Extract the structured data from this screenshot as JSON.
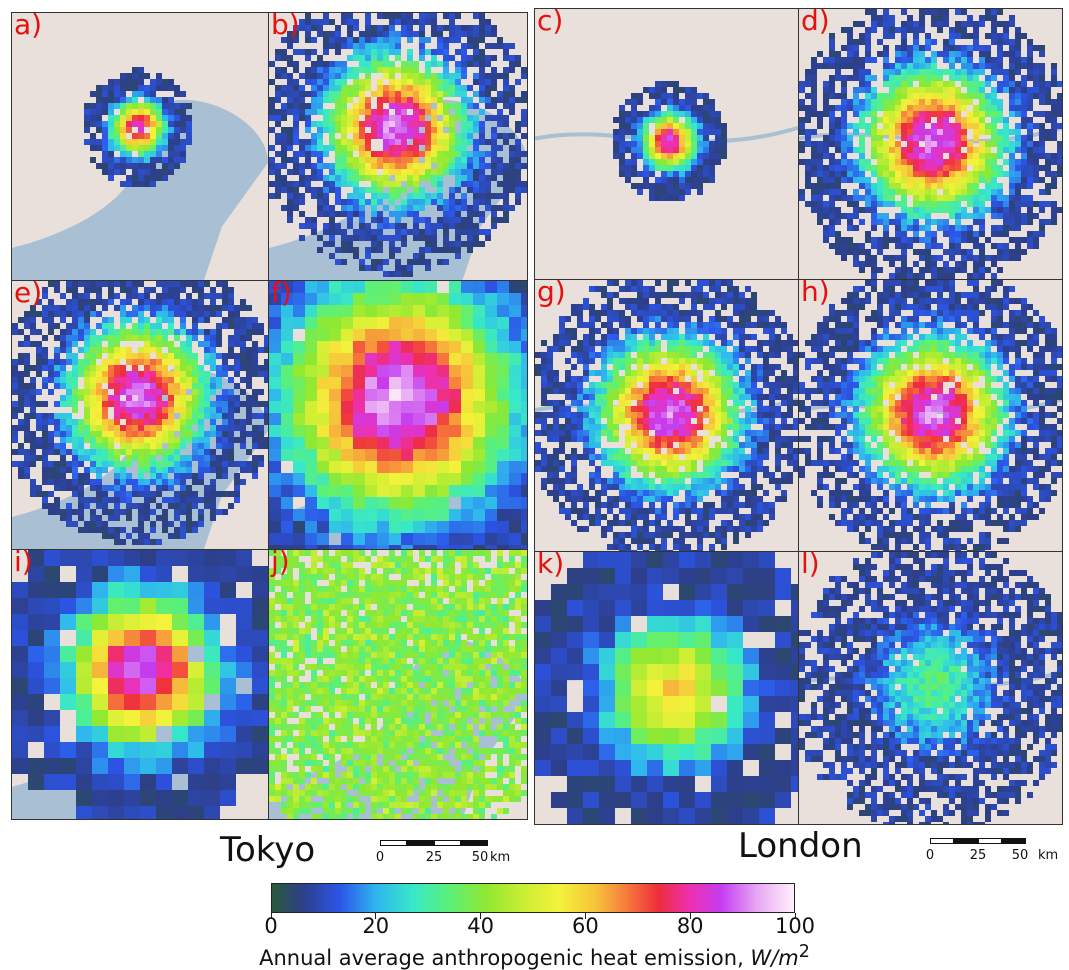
{
  "panels": [
    {
      "label": "a)",
      "city": "Tokyo",
      "pattern": "tokyo-small"
    },
    {
      "label": "b)",
      "city": "Tokyo",
      "pattern": "tokyo-spread"
    },
    {
      "label": "c)",
      "city": "London",
      "pattern": "london-small"
    },
    {
      "label": "d)",
      "city": "London",
      "pattern": "london-spread"
    },
    {
      "label": "e)",
      "city": "Tokyo",
      "pattern": "tokyo-spread"
    },
    {
      "label": "f)",
      "city": "Tokyo",
      "pattern": "tokyo-regions"
    },
    {
      "label": "g)",
      "city": "London",
      "pattern": "london-spread"
    },
    {
      "label": "h)",
      "city": "London",
      "pattern": "london-spread"
    },
    {
      "label": "i)",
      "city": "Tokyo",
      "pattern": "tokyo-coarse"
    },
    {
      "label": "j)",
      "city": "Tokyo",
      "pattern": "tokyo-flat"
    },
    {
      "label": "k)",
      "city": "London",
      "pattern": "london-coarse"
    },
    {
      "label": "l)",
      "city": "London",
      "pattern": "london-low"
    }
  ],
  "cities": {
    "tokyo": {
      "name": "Tokyo"
    },
    "london": {
      "name": "London"
    }
  },
  "scalebar": {
    "ticks": [
      "0",
      "25",
      "50"
    ],
    "unit": "km"
  },
  "colorbar": {
    "ticks": [
      "0",
      "20",
      "40",
      "60",
      "80",
      "100"
    ],
    "range": [
      0,
      100
    ],
    "label_text": "Annual average anthropogenic heat emission, ",
    "label_unit": "W/m",
    "label_exp": "2"
  },
  "colors": {
    "panel_label": "#e8100c",
    "water": "#a9bfd4",
    "land": "#e9dfdb"
  }
}
